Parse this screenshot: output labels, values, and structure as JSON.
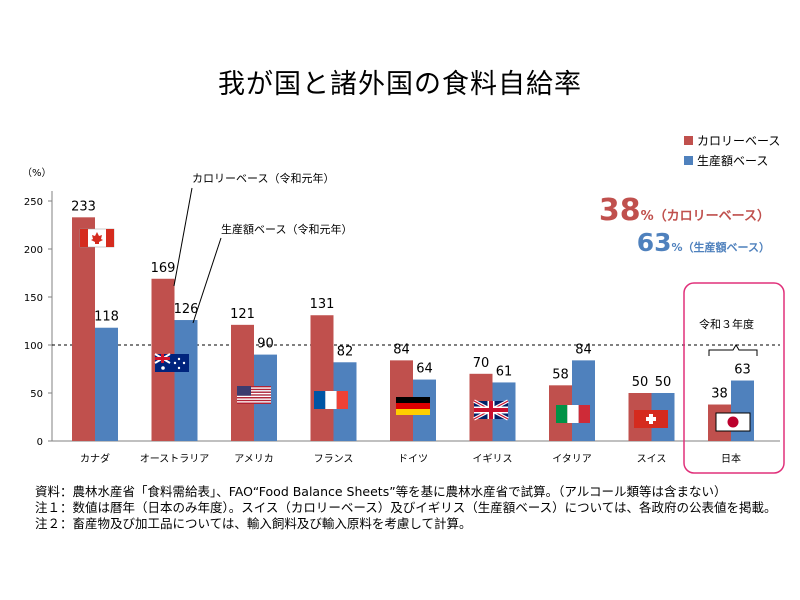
{
  "title": "我が国と諸外国の食料自給率",
  "legend": {
    "calorie": "カロリーベース",
    "production": "生産額ベース"
  },
  "highlight": {
    "calorie_value": "38",
    "calorie_unit": "%（カロリーベース）",
    "production_value": "63",
    "production_unit": "%（生産額ベース）"
  },
  "annotations": {
    "calorie_note": "カロリーベース（令和元年）",
    "production_note": "生産額ベース（令和元年）",
    "japan_note": "令和３年度"
  },
  "y_unit": "（%）",
  "notes": [
    "資料：農林水産省「食料需給表」、FAO“Food Balance Sheets”等を基に農林水産省で試算。（アルコール類等は含まない）",
    "注１：数値は暦年（日本のみ年度）。スイス（カロリーベース）及びイギリス（生産額ベース）については、各政府の公表値を掲載。",
    "注２：畜産物及び加工品については、輸入飼料及び輸入原料を考慮して計算。"
  ],
  "colors": {
    "calorie": "#c0504d",
    "production": "#4f81bd",
    "japan_box": "#e0307a"
  },
  "chart_data": {
    "type": "bar",
    "categories": [
      "カナダ",
      "オーストラリア",
      "アメリカ",
      "フランス",
      "ドイツ",
      "イギリス",
      "イタリア",
      "スイス",
      "日本"
    ],
    "series": [
      {
        "name": "カロリーベース",
        "values": [
          233,
          169,
          121,
          131,
          84,
          70,
          58,
          50,
          38
        ]
      },
      {
        "name": "生産額ベース",
        "values": [
          118,
          126,
          90,
          82,
          64,
          61,
          84,
          50,
          63
        ]
      }
    ],
    "ylim": [
      0,
      250
    ],
    "yticks": [
      0,
      50,
      100,
      150,
      200,
      250
    ],
    "reference_line": 100,
    "flags": [
      "canada",
      "australia",
      "usa",
      "france",
      "germany",
      "uk",
      "italy",
      "switzerland",
      "japan"
    ],
    "legend_position": "top-right"
  }
}
